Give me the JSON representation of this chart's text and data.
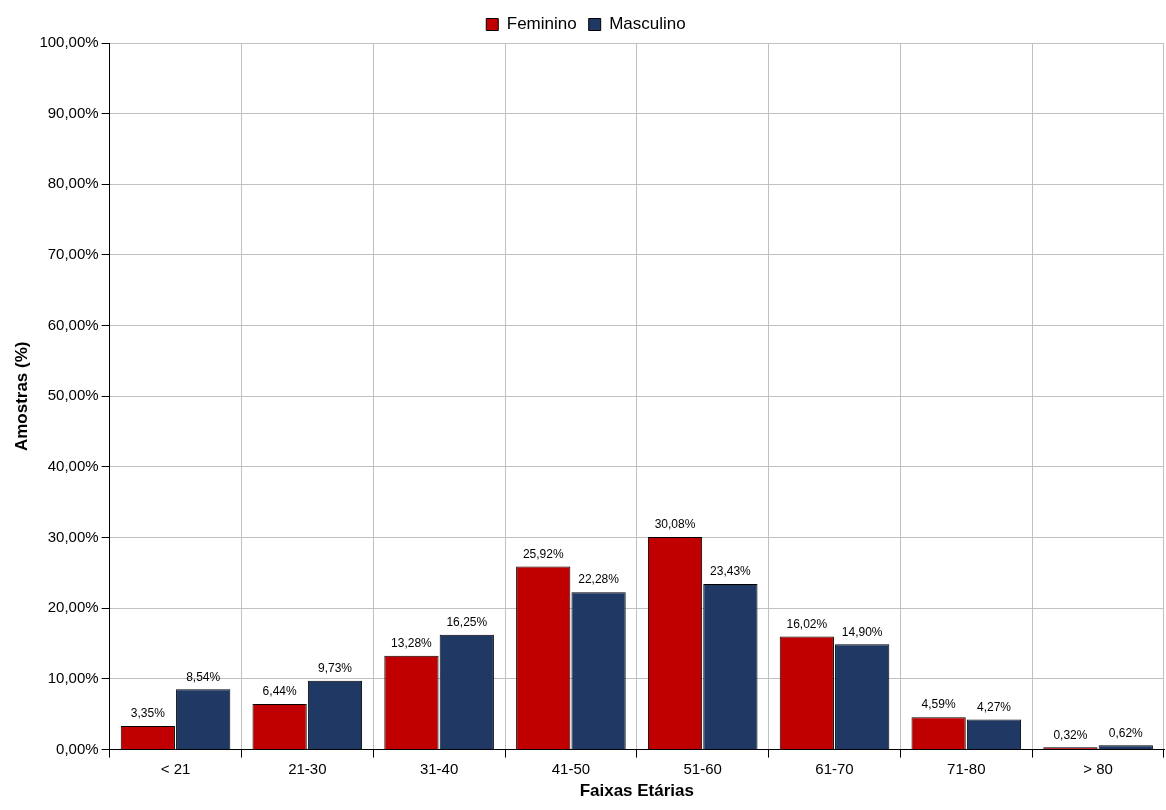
{
  "chart_data": {
    "type": "bar",
    "xlabel": "Faixas Etárias",
    "ylabel": "Amostras (%)",
    "categories": [
      "< 21",
      "21-30",
      "31-40",
      "41-50",
      "51-60",
      "61-70",
      "71-80",
      "> 80"
    ],
    "series": [
      {
        "name": "Feminino",
        "color": "#c00000",
        "values": [
          3.35,
          6.44,
          13.28,
          25.92,
          30.08,
          16.02,
          4.59,
          0.32
        ],
        "value_labels": [
          "3,35%",
          "6,44%",
          "13,28%",
          "25,92%",
          "30,08%",
          "16,02%",
          "4,59%",
          "0,32%"
        ]
      },
      {
        "name": "Masculino",
        "color": "#1f3864",
        "values": [
          8.54,
          9.73,
          16.25,
          22.28,
          23.43,
          14.9,
          4.27,
          0.62
        ],
        "value_labels": [
          "8,54%",
          "9,73%",
          "16,25%",
          "22,28%",
          "23,43%",
          "14,90%",
          "4,27%",
          "0,62%"
        ]
      }
    ],
    "ylim": [
      0,
      100
    ],
    "yticks": [
      {
        "value": 0,
        "label": "0,00%"
      },
      {
        "value": 10,
        "label": "10,00%"
      },
      {
        "value": 20,
        "label": "20,00%"
      },
      {
        "value": 30,
        "label": "30,00%"
      },
      {
        "value": 40,
        "label": "40,00%"
      },
      {
        "value": 50,
        "label": "50,00%"
      },
      {
        "value": 60,
        "label": "60,00%"
      },
      {
        "value": 70,
        "label": "70,00%"
      },
      {
        "value": 80,
        "label": "80,00%"
      },
      {
        "value": 90,
        "label": "90,00%"
      },
      {
        "value": 100,
        "label": "100,00%"
      }
    ],
    "grid": true,
    "legend": "top"
  }
}
